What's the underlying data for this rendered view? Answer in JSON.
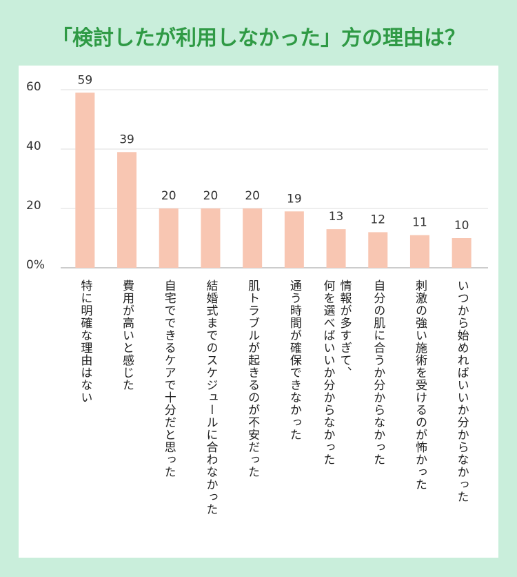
{
  "chart_data": {
    "type": "bar",
    "title": "「検討したが利用しなかった」方の理由は？",
    "categories": [
      "特に明確な理由はない",
      "費用が高いと感じた",
      "自宅でできるケアで十分だと思った",
      "結婚式までのスケジュールに合わなかった",
      "肌トラブルが起きるのが不安だった",
      "通う時間が確保できなかった",
      "情報が多すぎて、\n何を選べばいいか分からなかった",
      "自分の肌に合うか分からなかった",
      "刺激の強い施術を受けるのが怖かった",
      "いつから始めればいいか分からなかった"
    ],
    "values": [
      59,
      39,
      20,
      20,
      20,
      19,
      13,
      12,
      11,
      10
    ],
    "color": "#f8c6b2",
    "ylim": [
      0,
      60
    ],
    "yticks": [
      {
        "value": 0,
        "label": "0%"
      },
      20,
      40,
      60
    ],
    "grid": true
  }
}
